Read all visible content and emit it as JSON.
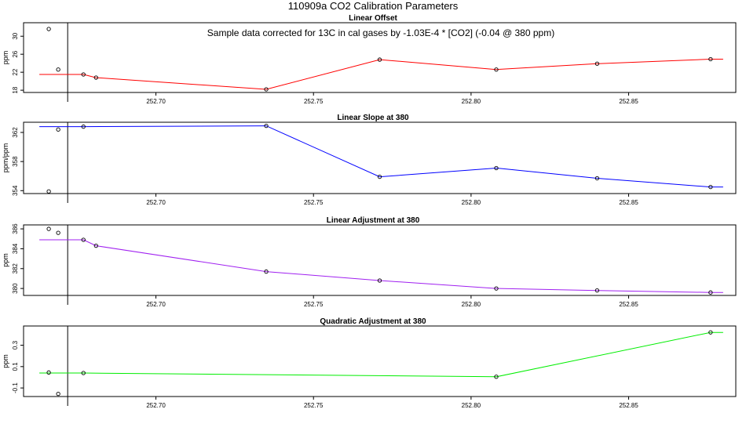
{
  "page_title": "110909a   CO2 Calibration Parameters",
  "chart_data": [
    {
      "type": "line",
      "title": "Linear Offset",
      "ylabel": "ppm",
      "annotation": "Sample data corrected for 13C in cal gases by -1.03E-4 * [CO2] (-0.04 @ 380 ppm)",
      "color": "#ff0000",
      "xlim": [
        252.658,
        252.884
      ],
      "ylim": [
        17.5,
        33.0
      ],
      "xticks": [
        252.7,
        252.75,
        252.8,
        252.85
      ],
      "xtick_labels": [
        "252.70",
        "252.75",
        "252.80",
        "252.85"
      ],
      "yticks": [
        18,
        22,
        26,
        30
      ],
      "ytick_labels": [
        "18",
        "22",
        "26",
        "30"
      ],
      "vline_x": 252.672,
      "line": {
        "x": [
          252.663,
          252.672,
          252.677,
          252.681,
          252.735,
          252.771,
          252.808,
          252.84,
          252.876,
          252.88
        ],
        "y": [
          21.5,
          21.5,
          21.5,
          20.8,
          18.2,
          24.8,
          22.6,
          23.9,
          24.9,
          24.9
        ]
      },
      "points": {
        "x": [
          252.666,
          252.669,
          252.677,
          252.681,
          252.735,
          252.771,
          252.808,
          252.84,
          252.876
        ],
        "y": [
          31.6,
          22.6,
          21.5,
          20.8,
          18.2,
          24.8,
          22.6,
          23.9,
          24.9
        ]
      }
    },
    {
      "type": "line",
      "title": "Linear Slope at 380",
      "ylabel": "ppm/ppm",
      "color": "#0000ff",
      "xlim": [
        252.658,
        252.884
      ],
      "ylim": [
        353.6,
        363.4
      ],
      "xticks": [
        252.7,
        252.75,
        252.8,
        252.85
      ],
      "xtick_labels": [
        "252.70",
        "252.75",
        "252.80",
        "252.85"
      ],
      "yticks": [
        354,
        358,
        362
      ],
      "ytick_labels": [
        "354",
        "358",
        "362"
      ],
      "vline_x": 252.672,
      "line": {
        "x": [
          252.663,
          252.677,
          252.735,
          252.771,
          252.808,
          252.84,
          252.876,
          252.88
        ],
        "y": [
          362.8,
          362.8,
          362.9,
          355.9,
          357.1,
          355.7,
          354.5,
          354.5
        ]
      },
      "points": {
        "x": [
          252.666,
          252.669,
          252.677,
          252.735,
          252.771,
          252.808,
          252.84,
          252.876
        ],
        "y": [
          353.9,
          362.4,
          362.8,
          362.9,
          355.9,
          357.1,
          355.7,
          354.5
        ]
      }
    },
    {
      "type": "line",
      "title": "Linear Adjustment at 380",
      "ylabel": "ppm",
      "color": "#a020f0",
      "xlim": [
        252.658,
        252.884
      ],
      "ylim": [
        379.3,
        386.4
      ],
      "xticks": [
        252.7,
        252.75,
        252.8,
        252.85
      ],
      "xtick_labels": [
        "252.70",
        "252.75",
        "252.80",
        "252.85"
      ],
      "yticks": [
        380,
        382,
        384,
        386
      ],
      "ytick_labels": [
        "380",
        "382",
        "384",
        "386"
      ],
      "vline_x": 252.672,
      "line": {
        "x": [
          252.663,
          252.677,
          252.681,
          252.735,
          252.771,
          252.808,
          252.84,
          252.876,
          252.88
        ],
        "y": [
          384.9,
          384.9,
          384.3,
          381.7,
          380.8,
          380.0,
          379.8,
          379.6,
          379.6
        ]
      },
      "points": {
        "x": [
          252.666,
          252.669,
          252.677,
          252.681,
          252.735,
          252.771,
          252.808,
          252.84,
          252.876
        ],
        "y": [
          386.0,
          385.6,
          384.9,
          384.3,
          381.7,
          380.8,
          380.0,
          379.8,
          379.6
        ]
      }
    },
    {
      "type": "line",
      "title": "Quadratic Adjustment at 380",
      "ylabel": "ppm",
      "color": "#00ee00",
      "xlim": [
        252.658,
        252.884
      ],
      "ylim": [
        -0.18,
        0.48
      ],
      "xticks": [
        252.7,
        252.75,
        252.8,
        252.85
      ],
      "xtick_labels": [
        "252.70",
        "252.75",
        "252.80",
        "252.85"
      ],
      "yticks": [
        -0.1,
        0.1,
        0.3
      ],
      "ytick_labels": [
        "-0.1",
        "0.1",
        "0.3"
      ],
      "vline_x": 252.672,
      "line": {
        "x": [
          252.663,
          252.677,
          252.808,
          252.876,
          252.88
        ],
        "y": [
          0.04,
          0.04,
          0.005,
          0.42,
          0.42
        ]
      },
      "points": {
        "x": [
          252.666,
          252.669,
          252.677,
          252.808,
          252.876
        ],
        "y": [
          0.045,
          -0.155,
          0.04,
          0.005,
          0.42
        ]
      }
    }
  ]
}
